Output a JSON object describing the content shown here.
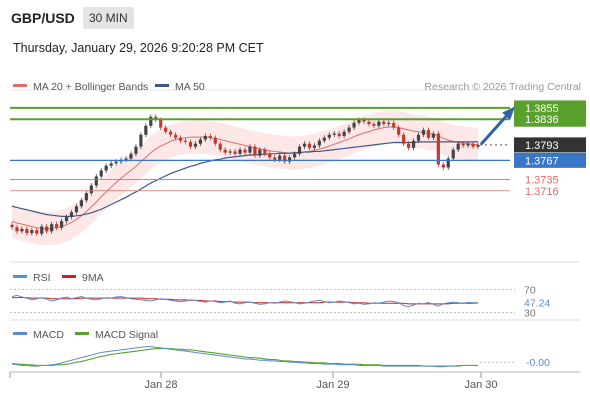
{
  "header": {
    "symbol": "GBP/USD",
    "timeframe": "30 MIN",
    "datetime": "Thursday, January 29, 2026 9:20:28 PM CET"
  },
  "colors": {
    "green": "#5aa02c",
    "blue": "#3a76c8",
    "red": "#e06c6c",
    "band": "#fde3e3",
    "price": "#222222",
    "ma50": "#3a5a8c",
    "arrow": "#2e63a8",
    "candle_up": "#444444",
    "candle_down": "#c0392b",
    "macd": "#5b8bd6",
    "macd_signal": "#5aa02c",
    "rsi": "#5b8bd6",
    "rsi_ma": "#cc2222"
  },
  "chart_data": [
    {
      "type": "line",
      "name": "price",
      "legend": [
        {
          "label": "MA 20 + Bollinger Bands",
          "color": "#e06c6c"
        },
        {
          "label": "MA 50",
          "color": "#3a5a8c"
        }
      ],
      "watermark": "Research © 2026 Trading Central",
      "x_ticks": [
        "Jan 28",
        "Jan 29",
        "Jan 30"
      ],
      "ylim": [
        1.362,
        1.3875
      ],
      "price_series": [
        1.3655,
        1.3648,
        1.3652,
        1.3645,
        1.365,
        1.3644,
        1.3656,
        1.3648,
        1.366,
        1.3654,
        1.3665,
        1.3672,
        1.368,
        1.369,
        1.37,
        1.3712,
        1.3725,
        1.374,
        1.375,
        1.3758,
        1.3762,
        1.3765,
        1.3768,
        1.377,
        1.3778,
        1.379,
        1.381,
        1.3825,
        1.384,
        1.3835,
        1.3822,
        1.3815,
        1.381,
        1.3805,
        1.38,
        1.3798,
        1.379,
        1.3795,
        1.3802,
        1.3808,
        1.3805,
        1.3795,
        1.3785,
        1.378,
        1.3782,
        1.3778,
        1.3785,
        1.378,
        1.379,
        1.3775,
        1.3785,
        1.3778,
        1.3772,
        1.3768,
        1.3775,
        1.3765,
        1.3772,
        1.3778,
        1.379,
        1.3795,
        1.3788,
        1.3792,
        1.38,
        1.3805,
        1.381,
        1.3812,
        1.3808,
        1.3815,
        1.3822,
        1.383,
        1.3835,
        1.3832,
        1.3828,
        1.3825,
        1.3832,
        1.3828,
        1.383,
        1.3822,
        1.381,
        1.3795,
        1.3788,
        1.38,
        1.381,
        1.3818,
        1.3805,
        1.3812,
        1.376,
        1.3755,
        1.377,
        1.3785,
        1.3795,
        1.3792,
        1.3795,
        1.379,
        1.3793
      ],
      "ma20_series": [
        1.3665,
        1.3662,
        1.366,
        1.3658,
        1.3656,
        1.3654,
        1.3653,
        1.3652,
        1.3653,
        1.3654,
        1.3656,
        1.3659,
        1.3663,
        1.3668,
        1.3674,
        1.3681,
        1.3689,
        1.3697,
        1.3706,
        1.3714,
        1.3722,
        1.373,
        1.3737,
        1.3744,
        1.375,
        1.3757,
        1.3765,
        1.3772,
        1.378,
        1.3786,
        1.3791,
        1.3795,
        1.3799,
        1.3802,
        1.3804,
        1.3805,
        1.3806,
        1.3806,
        1.3806,
        1.3806,
        1.3805,
        1.3804,
        1.3802,
        1.38,
        1.3798,
        1.3796,
        1.3794,
        1.3792,
        1.379,
        1.3788,
        1.3786,
        1.3785,
        1.3783,
        1.3782,
        1.3781,
        1.378,
        1.3779,
        1.3779,
        1.378,
        1.3781,
        1.3782,
        1.3784,
        1.3786,
        1.3788,
        1.3791,
        1.3794,
        1.3797,
        1.38,
        1.3803,
        1.3807,
        1.381,
        1.3813,
        1.3815,
        1.3818,
        1.382,
        1.3822,
        1.3823,
        1.3823,
        1.3822,
        1.382,
        1.3818,
        1.3816,
        1.3815,
        1.3814,
        1.3812,
        1.3811,
        1.3808,
        1.3804,
        1.3801,
        1.3799,
        1.3797,
        1.3796,
        1.3795,
        1.3794,
        1.3793
      ],
      "bb_width": 0.0028,
      "ma50_series": [
        1.369,
        1.3688,
        1.3686,
        1.3684,
        1.3682,
        1.368,
        1.3678,
        1.3676,
        1.3675,
        1.3674,
        1.3673,
        1.3673,
        1.3673,
        1.3674,
        1.3675,
        1.3677,
        1.3679,
        1.3682,
        1.3685,
        1.3689,
        1.3693,
        1.3697,
        1.3701,
        1.3705,
        1.371,
        1.3714,
        1.3719,
        1.3724,
        1.3729,
        1.3733,
        1.3737,
        1.3741,
        1.3745,
        1.3748,
        1.3751,
        1.3754,
        1.3757,
        1.3759,
        1.3762,
        1.3764,
        1.3766,
        1.3768,
        1.3769,
        1.3771,
        1.3772,
        1.3773,
        1.3774,
        1.3775,
        1.3776,
        1.3776,
        1.3777,
        1.3777,
        1.3778,
        1.3778,
        1.3779,
        1.3779,
        1.3779,
        1.378,
        1.378,
        1.3781,
        1.3781,
        1.3782,
        1.3782,
        1.3783,
        1.3784,
        1.3785,
        1.3786,
        1.3787,
        1.3788,
        1.3789,
        1.379,
        1.3791,
        1.3792,
        1.3793,
        1.3794,
        1.3795,
        1.3796,
        1.3797,
        1.3797,
        1.3797,
        1.3797,
        1.3797,
        1.3798,
        1.3798,
        1.3798,
        1.3798,
        1.3798,
        1.3798,
        1.3798,
        1.3798,
        1.3798,
        1.3798,
        1.3798,
        1.3798,
        1.3798
      ],
      "levels": [
        {
          "value": 1.3855,
          "label": "1.3855",
          "style": "green-box"
        },
        {
          "value": 1.3836,
          "label": "1.3836",
          "style": "green-box"
        },
        {
          "value": 1.3793,
          "label": "1.3793",
          "style": "dark-box"
        },
        {
          "value": 1.3767,
          "label": "1.3767",
          "style": "blue-box"
        },
        {
          "value": 1.3735,
          "label": "1.3735",
          "style": "red-text"
        },
        {
          "value": 1.3716,
          "label": "1.3716",
          "style": "red-text"
        }
      ]
    },
    {
      "type": "line",
      "name": "rsi",
      "legend": [
        {
          "label": "RSI",
          "color": "#5b8bd6"
        },
        {
          "label": "9MA",
          "color": "#cc2222"
        }
      ],
      "ylim": [
        20,
        80
      ],
      "ticks": [
        "70",
        "30"
      ],
      "value_label": "47.24",
      "rsi_series": [
        58,
        60,
        57,
        55,
        52,
        54,
        56,
        53,
        50,
        52,
        55,
        57,
        54,
        56,
        58,
        55,
        53,
        52,
        54,
        56,
        55,
        57,
        58,
        56,
        54,
        53,
        52,
        51,
        50,
        52,
        54,
        53,
        51,
        50,
        49,
        50,
        52,
        51,
        49,
        48,
        50,
        49,
        47,
        48,
        50,
        46,
        45,
        47,
        48,
        46,
        44,
        45,
        47,
        46,
        48,
        50,
        49,
        47,
        45,
        46,
        48,
        50,
        51,
        49,
        47,
        48,
        50,
        49,
        47,
        45,
        46,
        44,
        45,
        47,
        46,
        48,
        50,
        49,
        47,
        42,
        40,
        43,
        46,
        45,
        47,
        44,
        41,
        45,
        47,
        48,
        47,
        46,
        47.5,
        47,
        47.24
      ],
      "ma_series": [
        56,
        56,
        56,
        56,
        55,
        55,
        55,
        55,
        54,
        54,
        54,
        54,
        54,
        54,
        55,
        55,
        55,
        55,
        55,
        55,
        55,
        55,
        55,
        55,
        55,
        55,
        55,
        54,
        54,
        54,
        53,
        53,
        53,
        52,
        52,
        52,
        51,
        51,
        51,
        50,
        50,
        50,
        49,
        49,
        49,
        48,
        48,
        48,
        48,
        47,
        47,
        47,
        47,
        47,
        47,
        47,
        47,
        47,
        47,
        47,
        47,
        47,
        47,
        48,
        48,
        48,
        48,
        48,
        48,
        47,
        47,
        47,
        46,
        46,
        46,
        46,
        46,
        46,
        46,
        46,
        45,
        45,
        45,
        45,
        45,
        45,
        45,
        45,
        45,
        46,
        46,
        46,
        46,
        46,
        46.5
      ]
    },
    {
      "type": "line",
      "name": "macd",
      "legend": [
        {
          "label": "MACD",
          "color": "#5b8bd6"
        },
        {
          "label": "MACD Signal",
          "color": "#5aa02c"
        }
      ],
      "ylim": [
        -0.0012,
        0.0028
      ],
      "value_label": "-0.00",
      "macd_series": [
        -0.0003,
        -0.0004,
        -0.0005,
        -0.0005,
        -0.0006,
        -0.0006,
        -0.0005,
        -0.0005,
        -0.0004,
        -0.0003,
        -0.0001,
        0.0001,
        0.0003,
        0.0005,
        0.0007,
        0.0009,
        0.0011,
        0.0013,
        0.0015,
        0.0016,
        0.0017,
        0.0018,
        0.0019,
        0.002,
        0.0021,
        0.0022,
        0.0023,
        0.0024,
        0.0024,
        0.0023,
        0.0022,
        0.0021,
        0.002,
        0.0019,
        0.0018,
        0.0017,
        0.0016,
        0.0015,
        0.0014,
        0.0013,
        0.0012,
        0.0011,
        0.001,
        0.0009,
        0.0008,
        0.0007,
        0.0006,
        0.0005,
        0.0005,
        0.0004,
        0.0003,
        0.0003,
        0.0002,
        0.0002,
        0.0001,
        0.0001,
        0.0,
        0.0,
        -0.0001,
        -0.0001,
        -0.0002,
        -0.0002,
        -0.0002,
        -0.0003,
        -0.0003,
        -0.0003,
        -0.0004,
        -0.0004,
        -0.0004,
        -0.0004,
        -0.0005,
        -0.0005,
        -0.0005,
        -0.0005,
        -0.0005,
        -0.0006,
        -0.0006,
        -0.0006,
        -0.0006,
        -0.0006,
        -0.0006,
        -0.0006,
        -0.0006,
        -0.0006,
        -0.0006,
        -0.0006,
        -0.0007,
        -0.0007,
        -0.0006,
        -0.0006,
        -0.0005,
        -0.0005,
        -0.0005,
        -0.0005,
        -0.0005
      ],
      "signal_series": [
        -0.0002,
        -0.0003,
        -0.0003,
        -0.0004,
        -0.0004,
        -0.0005,
        -0.0005,
        -0.0005,
        -0.0005,
        -0.0004,
        -0.0004,
        -0.0003,
        -0.0002,
        0.0,
        0.0001,
        0.0003,
        0.0005,
        0.0007,
        0.0009,
        0.001,
        0.0012,
        0.0013,
        0.0014,
        0.0015,
        0.0016,
        0.0017,
        0.0018,
        0.0019,
        0.002,
        0.0021,
        0.0021,
        0.0021,
        0.0021,
        0.002,
        0.002,
        0.0019,
        0.0019,
        0.0018,
        0.0017,
        0.0016,
        0.0015,
        0.0014,
        0.0013,
        0.0012,
        0.0011,
        0.001,
        0.0009,
        0.0008,
        0.0007,
        0.0007,
        0.0006,
        0.0005,
        0.0004,
        0.0004,
        0.0003,
        0.0002,
        0.0002,
        0.0001,
        0.0001,
        0.0,
        0.0,
        -0.0001,
        -0.0001,
        -0.0001,
        -0.0002,
        -0.0002,
        -0.0002,
        -0.0003,
        -0.0003,
        -0.0003,
        -0.0003,
        -0.0004,
        -0.0004,
        -0.0004,
        -0.0004,
        -0.0005,
        -0.0005,
        -0.0005,
        -0.0005,
        -0.0005,
        -0.0005,
        -0.0005,
        -0.0005,
        -0.0006,
        -0.0006,
        -0.0006,
        -0.0006,
        -0.0006,
        -0.0006,
        -0.0006,
        -0.0006,
        -0.0005,
        -0.0005,
        -0.0005,
        -0.0005
      ]
    }
  ]
}
